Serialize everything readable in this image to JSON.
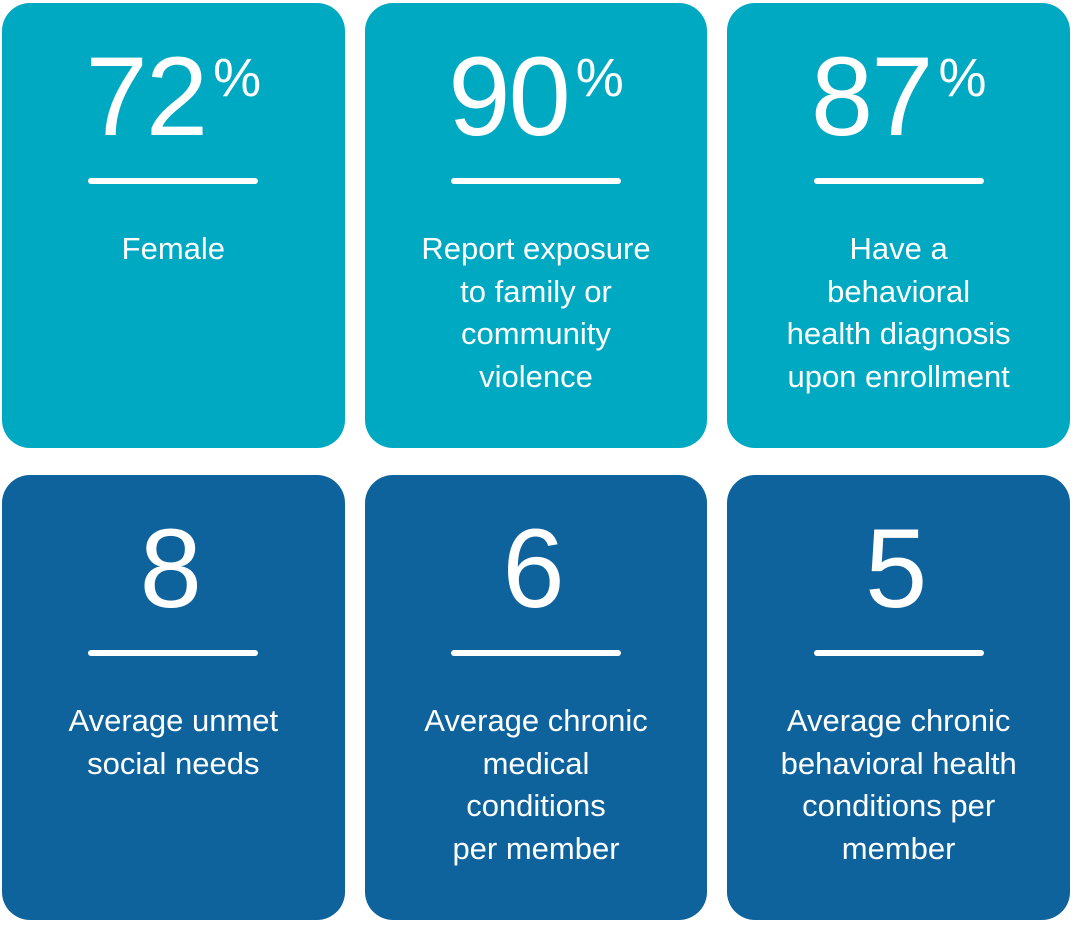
{
  "colors": {
    "teal_card": "#00A9C2",
    "blue_card": "#0F639D",
    "text": "#FFFFFF",
    "page_background": "#FFFFFF"
  },
  "cards": [
    {
      "value": "72",
      "suffix": "%",
      "label": "Female",
      "variant": "teal"
    },
    {
      "value": "90",
      "suffix": "%",
      "label": "Report exposure\nto family or\ncommunity\nviolence",
      "variant": "teal"
    },
    {
      "value": "87",
      "suffix": "%",
      "label": "Have a\nbehavioral\nhealth diagnosis\nupon enrollment",
      "variant": "teal"
    },
    {
      "value": "8",
      "suffix": "",
      "label": "Average unmet\nsocial needs",
      "variant": "blue"
    },
    {
      "value": "6",
      "suffix": "",
      "label": "Average chronic\nmedical\nconditions\nper member",
      "variant": "blue"
    },
    {
      "value": "5",
      "suffix": "",
      "label": "Average chronic\nbehavioral health\nconditions per\nmember",
      "variant": "blue"
    }
  ],
  "chart_data": {
    "type": "table",
    "title": "",
    "items": [
      {
        "value": 72,
        "unit": "%",
        "label": "Female"
      },
      {
        "value": 90,
        "unit": "%",
        "label": "Report exposure to family or community violence"
      },
      {
        "value": 87,
        "unit": "%",
        "label": "Have a behavioral health diagnosis upon enrollment"
      },
      {
        "value": 8,
        "unit": "",
        "label": "Average unmet social needs"
      },
      {
        "value": 6,
        "unit": "",
        "label": "Average chronic medical conditions per member"
      },
      {
        "value": 5,
        "unit": "",
        "label": "Average chronic behavioral health conditions per member"
      }
    ]
  }
}
